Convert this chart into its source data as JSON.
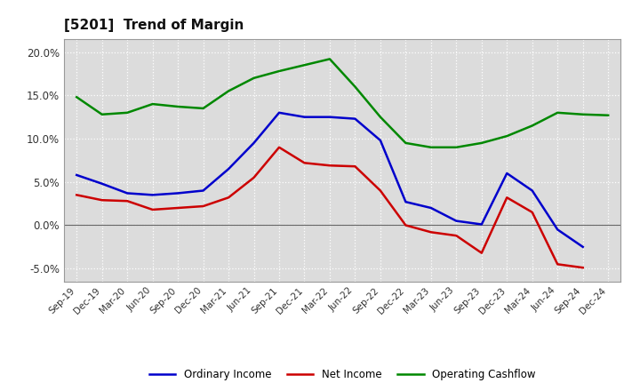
{
  "title": "[5201]  Trend of Margin",
  "x_labels": [
    "Sep-19",
    "Dec-19",
    "Mar-20",
    "Jun-20",
    "Sep-20",
    "Dec-20",
    "Mar-21",
    "Jun-21",
    "Sep-21",
    "Dec-21",
    "Mar-22",
    "Jun-22",
    "Sep-22",
    "Dec-22",
    "Mar-23",
    "Jun-23",
    "Sep-23",
    "Dec-23",
    "Mar-24",
    "Jun-24",
    "Sep-24",
    "Dec-24"
  ],
  "ordinary_income": [
    5.8,
    4.8,
    3.7,
    3.5,
    3.7,
    4.0,
    6.5,
    9.5,
    13.0,
    12.5,
    12.5,
    12.3,
    9.8,
    2.7,
    2.0,
    0.5,
    0.1,
    6.0,
    4.0,
    -0.5,
    -2.5,
    null
  ],
  "net_income": [
    3.5,
    2.9,
    2.8,
    1.8,
    2.0,
    2.2,
    3.2,
    5.5,
    9.0,
    7.2,
    6.9,
    6.8,
    4.0,
    0.0,
    -0.8,
    -1.2,
    -3.2,
    3.2,
    1.5,
    -4.5,
    -4.9,
    null
  ],
  "operating_cashflow": [
    14.8,
    12.8,
    13.0,
    14.0,
    13.7,
    13.5,
    15.5,
    17.0,
    17.8,
    18.5,
    19.2,
    16.0,
    12.5,
    9.5,
    9.0,
    9.0,
    9.5,
    10.3,
    11.5,
    13.0,
    12.8,
    12.7
  ],
  "color_blue": "#0000CC",
  "color_red": "#CC0000",
  "color_green": "#008800",
  "ylim": [
    -6.5,
    21.5
  ],
  "yticks": [
    -5.0,
    0.0,
    5.0,
    10.0,
    15.0,
    20.0
  ],
  "background_color": "#FFFFFF",
  "plot_bg_color": "#DCDCDC"
}
